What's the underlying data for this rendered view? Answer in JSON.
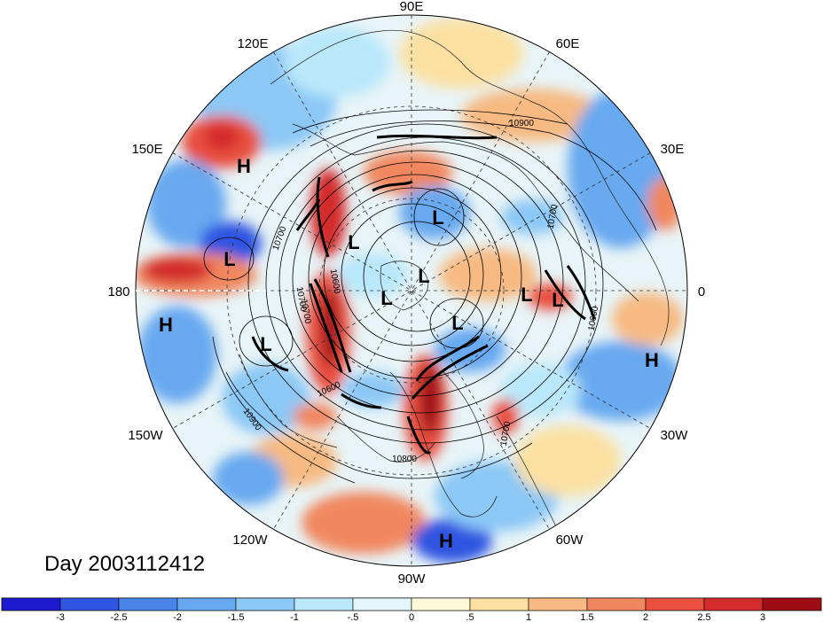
{
  "map": {
    "title": "Day 2003112412",
    "longitude_labels": {
      "lon_90e": "90E",
      "lon_120e": "120E",
      "lon_60e": "60E",
      "lon_150e": "150E",
      "lon_30e": "30E",
      "lon_180": "180",
      "lon_0": "0",
      "lon_150w": "150W",
      "lon_30w": "30W",
      "lon_120w": "120W",
      "lon_60w": "60W",
      "lon_90w": "90W"
    },
    "pressure_centers": [
      "H",
      "L",
      "H",
      "L",
      "L",
      "L",
      "L",
      "L",
      "L",
      "L",
      "L",
      "H",
      "H"
    ],
    "contour_labels": [
      "10900",
      "10700",
      "10600",
      "10700",
      "10700",
      "10600",
      "10900",
      "10800",
      "10700",
      "10600",
      "10700"
    ],
    "colorbar": {
      "ticks": [
        "-3",
        "-2.5",
        "-2",
        "-1.5",
        "-1",
        "-.5",
        "0",
        ".5",
        "1",
        "1.5",
        "2",
        "2.5",
        "3"
      ],
      "colors": [
        "#1c19cf",
        "#2f55e1",
        "#4a86ea",
        "#67a9f0",
        "#8cc8f6",
        "#b9e8fb",
        "#e2f6fb",
        "#fff8d9",
        "#fbe0a2",
        "#f7ba82",
        "#f1875e",
        "#e95040",
        "#d42c2c",
        "#9e0d16"
      ]
    },
    "colors": {
      "land_outline": "#1a1a1a",
      "grid": "#333333"
    }
  }
}
